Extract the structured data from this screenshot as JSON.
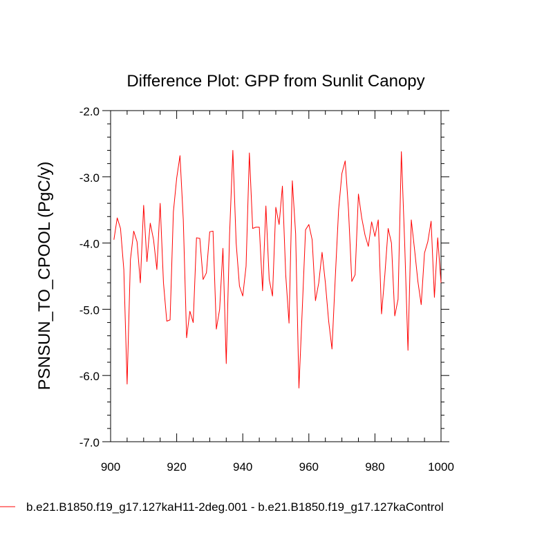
{
  "chart_data": {
    "type": "line",
    "title": "Difference Plot: GPP from Sunlit Canopy",
    "xlabel": "",
    "ylabel": "PSNSUN_TO_CPOOL  (PgC/y)",
    "xlim": [
      900,
      1000
    ],
    "ylim": [
      -7.0,
      -2.0
    ],
    "x_ticks": [
      900,
      920,
      940,
      960,
      980,
      1000
    ],
    "x_tick_labels": [
      "900",
      "920",
      "940",
      "960",
      "980",
      "1000"
    ],
    "y_ticks": [
      -7.0,
      -6.0,
      -5.0,
      -4.0,
      -3.0,
      -2.0
    ],
    "y_tick_labels": [
      "-7.0",
      "-6.0",
      "-5.0",
      "-4.0",
      "-3.0",
      "-2.0"
    ],
    "x_minor_step": 5,
    "y_minor_step": 0.2,
    "grid": false,
    "legend_position": "bottom",
    "colors": {
      "series": "#ff0000",
      "axes": "#000000",
      "background": "#ffffff"
    },
    "series": [
      {
        "name": "b.e21.B1850.f19_g17.127kaH11-2deg.001 - b.e21.B1850.f19_g17.127kaControl",
        "x": [
          901,
          902,
          903,
          904,
          905,
          906,
          907,
          908,
          909,
          910,
          911,
          912,
          913,
          914,
          915,
          916,
          917,
          918,
          919,
          920,
          921,
          922,
          923,
          924,
          925,
          926,
          927,
          928,
          929,
          930,
          931,
          932,
          933,
          934,
          935,
          936,
          937,
          938,
          939,
          940,
          941,
          942,
          943,
          944,
          945,
          946,
          947,
          948,
          949,
          950,
          951,
          952,
          953,
          954,
          955,
          956,
          957,
          958,
          959,
          960,
          961,
          962,
          963,
          964,
          965,
          966,
          967,
          968,
          969,
          970,
          971,
          972,
          973,
          974,
          975,
          976,
          977,
          978,
          979,
          980,
          981,
          982,
          983,
          984,
          985,
          986,
          987,
          988,
          989,
          990,
          991,
          992,
          993,
          994,
          995,
          996,
          997,
          998,
          999,
          1000
        ],
        "values": [
          -3.95,
          -3.62,
          -3.78,
          -4.4,
          -6.13,
          -4.25,
          -3.82,
          -3.98,
          -4.6,
          -3.43,
          -4.28,
          -3.7,
          -3.95,
          -4.4,
          -3.4,
          -4.6,
          -5.18,
          -5.16,
          -3.53,
          -3.02,
          -2.68,
          -3.65,
          -5.43,
          -5.03,
          -5.2,
          -3.92,
          -3.93,
          -4.55,
          -4.45,
          -3.83,
          -3.82,
          -5.3,
          -5.0,
          -4.08,
          -5.82,
          -3.88,
          -2.6,
          -4.0,
          -4.65,
          -4.8,
          -4.35,
          -2.64,
          -3.78,
          -3.76,
          -3.76,
          -4.72,
          -3.44,
          -4.55,
          -4.8,
          -3.46,
          -3.72,
          -3.14,
          -4.48,
          -5.21,
          -3.06,
          -3.86,
          -6.19,
          -5.01,
          -3.8,
          -3.72,
          -3.95,
          -4.87,
          -4.6,
          -4.14,
          -4.6,
          -5.18,
          -5.6,
          -4.52,
          -3.5,
          -2.95,
          -2.76,
          -3.5,
          -4.58,
          -4.48,
          -3.26,
          -3.62,
          -3.88,
          -4.05,
          -3.68,
          -3.9,
          -3.65,
          -5.07,
          -4.48,
          -3.78,
          -4.0,
          -5.1,
          -4.85,
          -2.62,
          -4.0,
          -5.62,
          -3.65,
          -4.1,
          -4.58,
          -4.93,
          -4.15,
          -3.98,
          -3.67,
          -4.82,
          -3.92,
          -4.6
        ]
      }
    ]
  }
}
